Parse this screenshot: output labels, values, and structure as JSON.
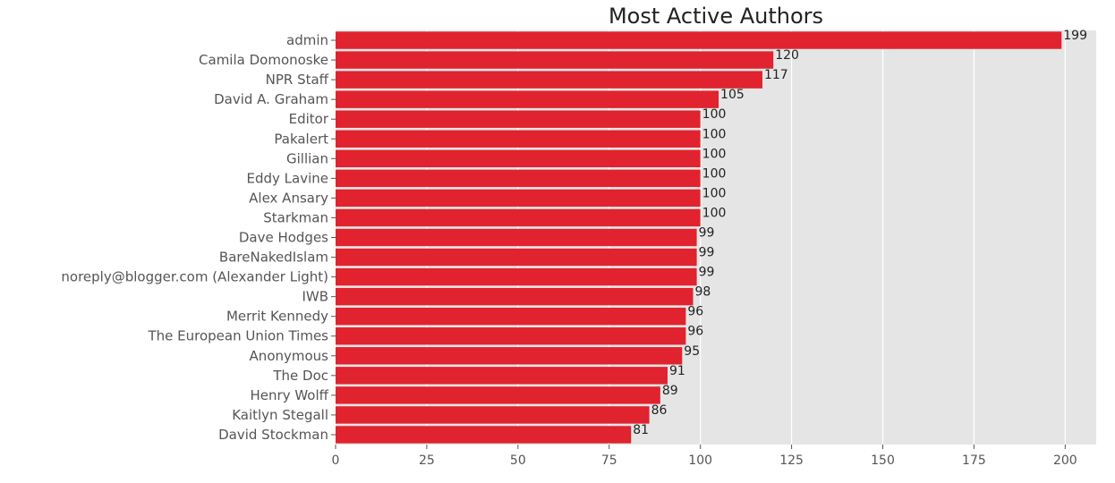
{
  "chart_data": {
    "type": "bar",
    "orientation": "horizontal",
    "title": "Most Active Authors",
    "xlabel": "",
    "ylabel": "",
    "xlim": [
      0,
      208.5
    ],
    "xticks": [
      0,
      25,
      50,
      75,
      100,
      125,
      150,
      175,
      200
    ],
    "grid": true,
    "background": "#e5e5e5",
    "bar_color": "#e0232e",
    "categories": [
      "admin",
      "Camila Domonoske",
      "NPR Staff",
      "David A. Graham",
      "Editor",
      "Pakalert",
      "Gillian",
      "Eddy Lavine",
      "Alex Ansary",
      "Starkman",
      "Dave Hodges",
      "BareNakedIslam",
      "noreply@blogger.com (Alexander Light)",
      "IWB",
      "Merrit Kennedy",
      "The European Union Times",
      "Anonymous",
      "The Doc",
      "Henry Wolff",
      "Kaitlyn Stegall",
      "David Stockman"
    ],
    "values": [
      199,
      120,
      117,
      105,
      100,
      100,
      100,
      100,
      100,
      100,
      99,
      99,
      99,
      98,
      96,
      96,
      95,
      91,
      89,
      86,
      81
    ]
  }
}
